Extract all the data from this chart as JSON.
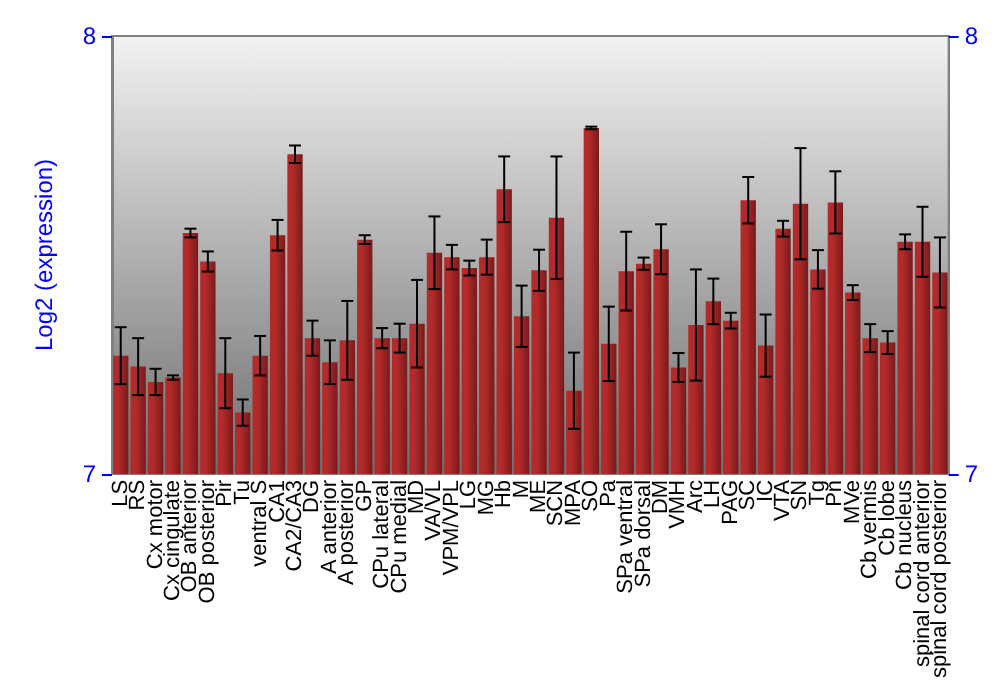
{
  "chart_data": {
    "type": "bar",
    "ylabel": "Log2 (expression)",
    "categories": [
      "LS",
      "RS",
      "Cx motor",
      "Cx cingulate",
      "OB anterior",
      "OB posterior",
      "Pir",
      "Tu",
      "ventral S",
      "CA1",
      "CA2/CA3",
      "DG",
      "A anterior",
      "A posterior",
      "GP",
      "CPu lateral",
      "CPu medial",
      "MD",
      "VA/VL",
      "VPM/VPL",
      "LG",
      "MG",
      "Hb",
      "M",
      "ME",
      "SCN",
      "MPA",
      "SO",
      "Pa",
      "SPa ventral",
      "SPa dorsal",
      "DM",
      "VMH",
      "Arc",
      "LH",
      "PAG",
      "SC",
      "IC",
      "VTA",
      "SN",
      "Tg",
      "Pn",
      "MVe",
      "Cb vermis",
      "Cb lobe",
      "Cb nucleus",
      "spinal cord anterior",
      "spinal cord posterior"
    ],
    "values": [
      7.27,
      7.245,
      7.21,
      7.22,
      7.55,
      7.485,
      7.23,
      7.14,
      7.27,
      7.545,
      7.73,
      7.31,
      7.255,
      7.305,
      7.535,
      7.31,
      7.31,
      7.343,
      7.505,
      7.495,
      7.47,
      7.495,
      7.65,
      7.36,
      7.465,
      7.585,
      7.19,
      7.79,
      7.297,
      7.463,
      7.48,
      7.513,
      7.243,
      7.34,
      7.394,
      7.35,
      7.625,
      7.293,
      7.56,
      7.617,
      7.467,
      7.62,
      7.414,
      7.31,
      7.3,
      7.53,
      7.53,
      7.46
    ],
    "errors": [
      0.065,
      0.065,
      0.03,
      0.005,
      0.01,
      0.023,
      0.08,
      0.03,
      0.045,
      0.035,
      0.02,
      0.04,
      0.05,
      0.09,
      0.01,
      0.023,
      0.033,
      0.1,
      0.083,
      0.028,
      0.017,
      0.04,
      0.075,
      0.07,
      0.047,
      0.14,
      0.087,
      0.003,
      0.085,
      0.09,
      0.014,
      0.057,
      0.033,
      0.127,
      0.052,
      0.018,
      0.053,
      0.071,
      0.018,
      0.127,
      0.044,
      0.071,
      0.017,
      0.032,
      0.026,
      0.017,
      0.08,
      0.08
    ],
    "color": "#b22a2a",
    "ylim": [
      7,
      8
    ],
    "yticks": [
      7,
      8
    ],
    "y2lim": [
      7,
      8
    ],
    "y2ticks": [
      7,
      8
    ],
    "grid": false
  }
}
